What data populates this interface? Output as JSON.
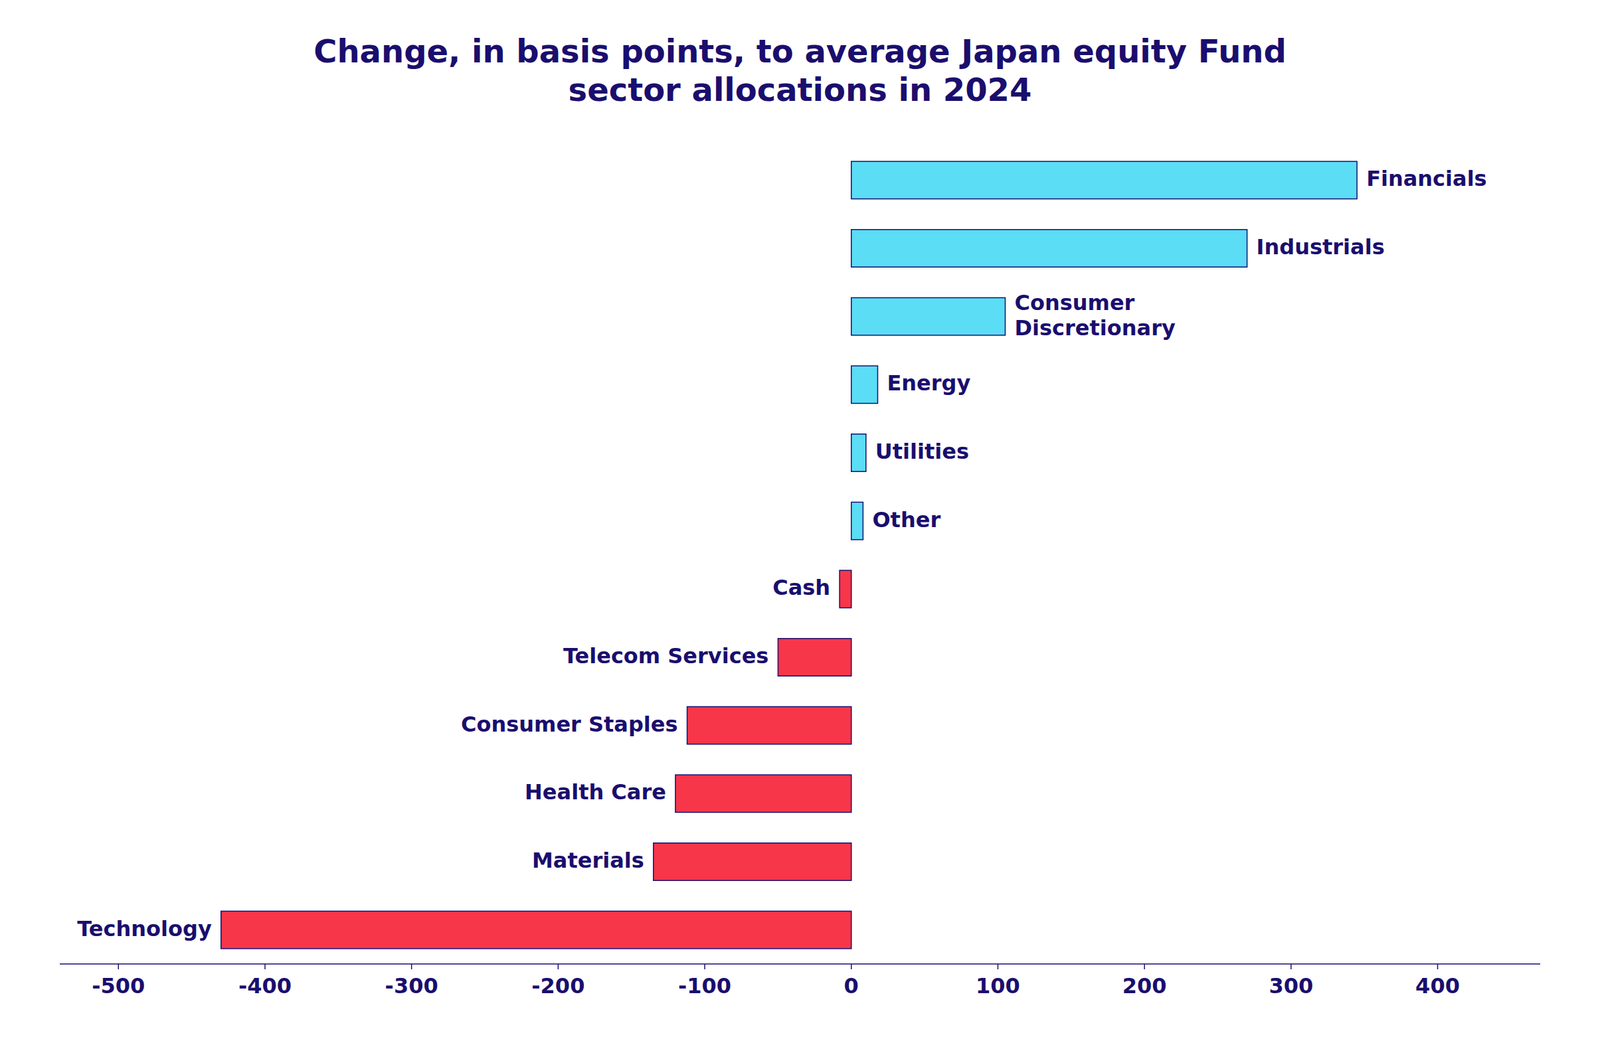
{
  "chart_data": {
    "type": "bar",
    "orientation": "horizontal",
    "title": "Change, in basis points, to average Japan equity Fund\nsector allocations in 2024",
    "categories": [
      "Technology",
      "Materials",
      "Health Care",
      "Consumer Staples",
      "Telecom Services",
      "Cash",
      "Other",
      "Utilities",
      "Energy",
      "Consumer\nDiscretionary",
      "Industrials",
      "Financials"
    ],
    "values": [
      -430,
      -135,
      -120,
      -112,
      -50,
      -8,
      8,
      10,
      18,
      105,
      270,
      345
    ],
    "colors": [
      "#f7364a",
      "#f7364a",
      "#f7364a",
      "#f7364a",
      "#f7364a",
      "#f7364a",
      "#5addf5",
      "#5addf5",
      "#5addf5",
      "#5addf5",
      "#5addf5",
      "#5addf5"
    ],
    "xlim": [
      -540,
      470
    ],
    "xticks": [
      -500,
      -400,
      -300,
      -200,
      -100,
      0,
      100,
      200,
      300,
      400
    ],
    "grid": false
  }
}
